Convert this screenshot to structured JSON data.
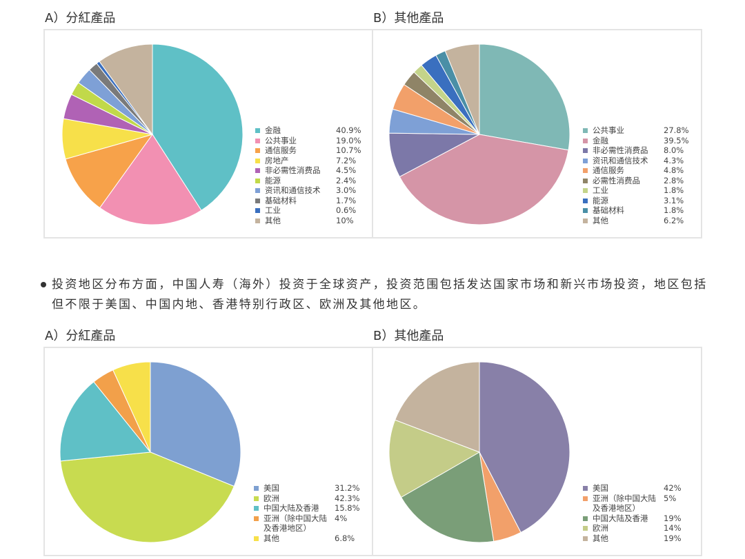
{
  "chart_data": [
    {
      "type": "pie",
      "title": "A）分紅產品",
      "categories": [
        "金融",
        "公共事业",
        "通信服务",
        "房地产",
        "非必需性消费品",
        "能源",
        "资讯和通信技术",
        "基础材料",
        "工业",
        "其他"
      ],
      "values": [
        40.9,
        19.0,
        10.7,
        7.2,
        4.5,
        2.4,
        3.0,
        1.7,
        0.6,
        10
      ],
      "value_labels": [
        "40.9%",
        "19.0%",
        "10.7%",
        "7.2%",
        "4.5%",
        "2.4%",
        "3.0%",
        "1.7%",
        "0.6%",
        "10%"
      ],
      "colors": [
        "#5fc0c6",
        "#f290b2",
        "#f7a24a",
        "#f7e04a",
        "#b062b5",
        "#c1d94a",
        "#7ea0d6",
        "#7a7a7a",
        "#3a6fbf",
        "#c4b39e"
      ]
    },
    {
      "type": "pie",
      "title": "B）其他產品",
      "categories": [
        "公共事业",
        "金融",
        "非必需性消费品",
        "资讯和通信技术",
        "通信服务",
        "必需性消费品",
        "工业",
        "能源",
        "基础材料",
        "其他"
      ],
      "values": [
        27.8,
        39.5,
        8.0,
        4.3,
        4.8,
        2.8,
        1.8,
        3.1,
        1.8,
        6.2
      ],
      "value_labels": [
        "27.8%",
        "39.5%",
        "8.0%",
        "4.3%",
        "4.8%",
        "2.8%",
        "1.8%",
        "3.1%",
        "1.8%",
        "6.2%"
      ],
      "colors": [
        "#7fb8b5",
        "#d595a7",
        "#7c78a8",
        "#7ea0d6",
        "#f2a06a",
        "#8f8467",
        "#c4d48a",
        "#3a6fbf",
        "#4a8fa6",
        "#c4b39e"
      ]
    },
    {
      "type": "pie",
      "title": "A）分紅產品",
      "categories": [
        "美国",
        "欧洲",
        "中国大陆及香港",
        "亚洲（除中国大陆及香港地区）",
        "其他"
      ],
      "values": [
        31.2,
        42.3,
        15.8,
        4,
        6.8
      ],
      "value_labels": [
        "31.2%",
        "42.3%",
        "15.8%",
        "4%",
        "6.8%"
      ],
      "colors": [
        "#7ea0d1",
        "#c8db50",
        "#5fc0c6",
        "#f2a04a",
        "#f7e04a"
      ]
    },
    {
      "type": "pie",
      "title": "B）其他產品",
      "categories": [
        "美国",
        "亚洲（除中国大陆及香港地区）",
        "中国大陆及香港",
        "欧洲",
        "其他"
      ],
      "values": [
        42,
        5,
        19,
        14,
        19
      ],
      "value_labels": [
        "42%",
        "5%",
        "19%",
        "14%",
        "19%"
      ],
      "colors": [
        "#8880a8",
        "#f2a06a",
        "#7a9e78",
        "#c4cc88",
        "#c4b39e"
      ]
    }
  ],
  "paragraph": "投资地区分布方面，中国人寿（海外）投资于全球资产，投资范围包括发达国家市场和新兴市场投资，地区包括但不限于美国、中国内地、香港特别行政区、欧洲及其他地区。"
}
